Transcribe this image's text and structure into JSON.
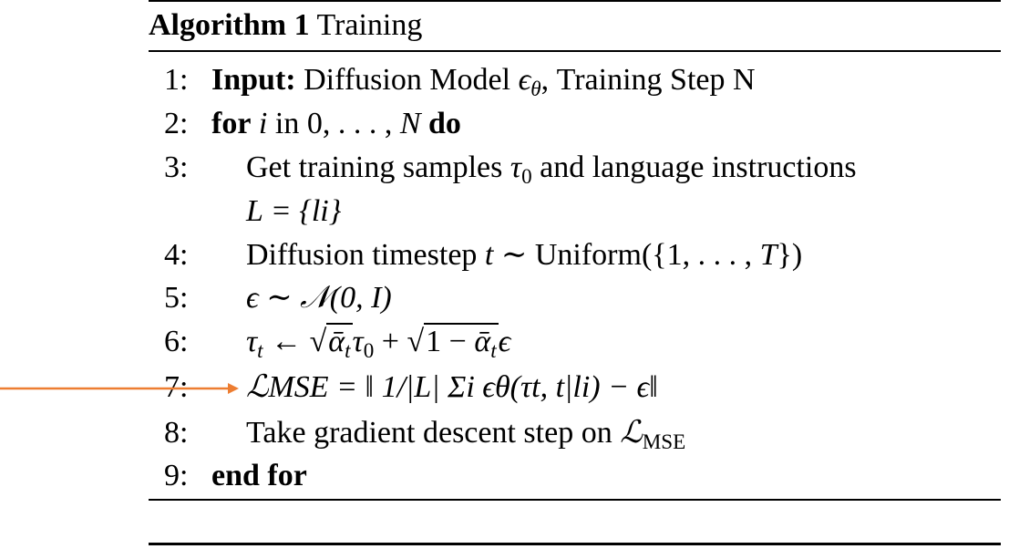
{
  "algorithm": {
    "label": "Algorithm 1",
    "title": "Training",
    "lines": [
      {
        "num": "1:",
        "keyword": "Input:",
        "text": "Diffusion Model ϵθ, Training Step N"
      },
      {
        "num": "2:",
        "keyword": "for",
        "text": "i in 0, . . . , N",
        "keyword_end": "do"
      },
      {
        "num": "3:",
        "text": "Get training samples τ0 and language instructions",
        "continuation": "L = {li}"
      },
      {
        "num": "4:",
        "text": "Diffusion timestep t ∼ Uniform({1, . . . , T})"
      },
      {
        "num": "5:",
        "text": "ϵ ∼ 𝒩(0, I)"
      },
      {
        "num": "6:",
        "text": "τt ← √ᾱt τ0 + √(1 − ᾱt) ϵ"
      },
      {
        "num": "7:",
        "text": "ℒMSE = ‖ 1/|L| Σi ϵθ(τt, t|li) − ϵ‖"
      },
      {
        "num": "8:",
        "text": "Take gradient descent step on ℒMSE"
      },
      {
        "num": "9:",
        "keyword": "end for"
      }
    ]
  },
  "annotation": {
    "type": "arrow",
    "points_to_line": "7:",
    "color": "#ED7D31"
  }
}
